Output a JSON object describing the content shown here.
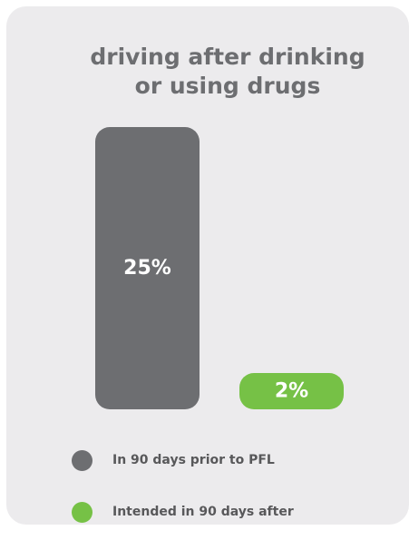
{
  "chart_data": {
    "type": "bar",
    "title": "driving after drinking or using drugs",
    "title_lines": [
      "driving after drinking",
      "or using drugs"
    ],
    "categories": [
      "In 90 days prior to PFL",
      "Intended in 90 days after"
    ],
    "values": [
      25,
      2
    ],
    "value_labels": [
      "25%",
      "2%"
    ],
    "colors": [
      "#6d6e71",
      "#76c146"
    ],
    "ylim": [
      0,
      25
    ],
    "grid": false,
    "legend_position": "bottom"
  },
  "legend": {
    "items": [
      {
        "label": "In 90 days prior to PFL",
        "color": "#6d6e71"
      },
      {
        "label": "Intended in 90 days after",
        "color": "#76c146"
      }
    ]
  }
}
